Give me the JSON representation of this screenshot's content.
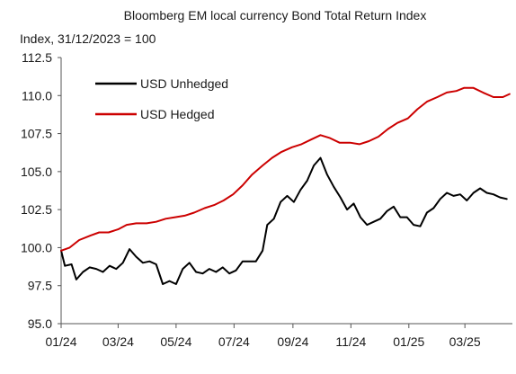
{
  "chart_data": {
    "type": "line",
    "title": "Bloomberg EM local currency Bond Total Return Index",
    "ylabel": "Index, 31/12/2023 = 100",
    "xlabel": "",
    "ylim": [
      95.0,
      112.5
    ],
    "yticks": [
      "95.0",
      "97.5",
      "100.0",
      "102.5",
      "105.0",
      "107.5",
      "110.0",
      "112.5"
    ],
    "xlim": [
      "2024-01-01",
      "2025-04-20"
    ],
    "xticks": [
      {
        "date": "2024-01-01",
        "label": "01/24"
      },
      {
        "date": "2024-03-01",
        "label": "03/24"
      },
      {
        "date": "2024-05-01",
        "label": "05/24"
      },
      {
        "date": "2024-07-01",
        "label": "07/24"
      },
      {
        "date": "2024-09-01",
        "label": "09/24"
      },
      {
        "date": "2024-11-01",
        "label": "11/24"
      },
      {
        "date": "2025-01-01",
        "label": "01/25"
      },
      {
        "date": "2025-03-01",
        "label": "03/25"
      }
    ],
    "grid": false,
    "legend_position": "top-left",
    "series": [
      {
        "name": "USD Unhedged",
        "color": "#000000",
        "points": [
          [
            "2024-01-01",
            99.8
          ],
          [
            "2024-01-05",
            98.8
          ],
          [
            "2024-01-12",
            98.9
          ],
          [
            "2024-01-17",
            97.9
          ],
          [
            "2024-01-24",
            98.4
          ],
          [
            "2024-01-31",
            98.7
          ],
          [
            "2024-02-07",
            98.6
          ],
          [
            "2024-02-14",
            98.4
          ],
          [
            "2024-02-21",
            98.8
          ],
          [
            "2024-02-28",
            98.6
          ],
          [
            "2024-03-06",
            99.0
          ],
          [
            "2024-03-13",
            99.9
          ],
          [
            "2024-03-20",
            99.4
          ],
          [
            "2024-03-27",
            99.0
          ],
          [
            "2024-04-03",
            99.1
          ],
          [
            "2024-04-10",
            98.9
          ],
          [
            "2024-04-17",
            97.6
          ],
          [
            "2024-04-24",
            97.8
          ],
          [
            "2024-05-01",
            97.6
          ],
          [
            "2024-05-08",
            98.6
          ],
          [
            "2024-05-15",
            99.0
          ],
          [
            "2024-05-22",
            98.4
          ],
          [
            "2024-05-29",
            98.3
          ],
          [
            "2024-06-05",
            98.6
          ],
          [
            "2024-06-12",
            98.4
          ],
          [
            "2024-06-19",
            98.7
          ],
          [
            "2024-06-26",
            98.3
          ],
          [
            "2024-07-03",
            98.5
          ],
          [
            "2024-07-10",
            99.1
          ],
          [
            "2024-07-17",
            99.1
          ],
          [
            "2024-07-24",
            99.1
          ],
          [
            "2024-07-31",
            99.8
          ],
          [
            "2024-08-05",
            101.5
          ],
          [
            "2024-08-12",
            101.9
          ],
          [
            "2024-08-19",
            103.0
          ],
          [
            "2024-08-26",
            103.4
          ],
          [
            "2024-09-02",
            103.0
          ],
          [
            "2024-09-09",
            103.8
          ],
          [
            "2024-09-16",
            104.4
          ],
          [
            "2024-09-23",
            105.4
          ],
          [
            "2024-09-30",
            105.9
          ],
          [
            "2024-10-07",
            104.8
          ],
          [
            "2024-10-14",
            104.0
          ],
          [
            "2024-10-21",
            103.3
          ],
          [
            "2024-10-28",
            102.5
          ],
          [
            "2024-11-04",
            102.9
          ],
          [
            "2024-11-11",
            102.0
          ],
          [
            "2024-11-18",
            101.5
          ],
          [
            "2024-11-25",
            101.7
          ],
          [
            "2024-12-02",
            101.9
          ],
          [
            "2024-12-09",
            102.4
          ],
          [
            "2024-12-16",
            102.7
          ],
          [
            "2024-12-23",
            102.0
          ],
          [
            "2024-12-30",
            102.0
          ],
          [
            "2025-01-06",
            101.5
          ],
          [
            "2025-01-13",
            101.4
          ],
          [
            "2025-01-20",
            102.3
          ],
          [
            "2025-01-27",
            102.6
          ],
          [
            "2025-02-03",
            103.2
          ],
          [
            "2025-02-10",
            103.6
          ],
          [
            "2025-02-17",
            103.4
          ],
          [
            "2025-02-24",
            103.5
          ],
          [
            "2025-03-03",
            103.1
          ],
          [
            "2025-03-10",
            103.6
          ],
          [
            "2025-03-17",
            103.9
          ],
          [
            "2025-03-24",
            103.6
          ],
          [
            "2025-03-31",
            103.5
          ],
          [
            "2025-04-07",
            103.3
          ],
          [
            "2025-04-14",
            103.2
          ]
        ]
      },
      {
        "name": "USD Hedged",
        "color": "#cc0000",
        "points": [
          [
            "2024-01-01",
            99.8
          ],
          [
            "2024-01-10",
            100.0
          ],
          [
            "2024-01-20",
            100.5
          ],
          [
            "2024-02-01",
            100.8
          ],
          [
            "2024-02-10",
            101.0
          ],
          [
            "2024-02-20",
            101.0
          ],
          [
            "2024-03-01",
            101.2
          ],
          [
            "2024-03-10",
            101.5
          ],
          [
            "2024-03-20",
            101.6
          ],
          [
            "2024-03-31",
            101.6
          ],
          [
            "2024-04-10",
            101.7
          ],
          [
            "2024-04-20",
            101.9
          ],
          [
            "2024-04-30",
            102.0
          ],
          [
            "2024-05-10",
            102.1
          ],
          [
            "2024-05-20",
            102.3
          ],
          [
            "2024-05-31",
            102.6
          ],
          [
            "2024-06-10",
            102.8
          ],
          [
            "2024-06-20",
            103.1
          ],
          [
            "2024-06-30",
            103.5
          ],
          [
            "2024-07-10",
            104.1
          ],
          [
            "2024-07-20",
            104.8
          ],
          [
            "2024-07-31",
            105.4
          ],
          [
            "2024-08-10",
            105.9
          ],
          [
            "2024-08-20",
            106.3
          ],
          [
            "2024-08-31",
            106.6
          ],
          [
            "2024-09-10",
            106.8
          ],
          [
            "2024-09-20",
            107.1
          ],
          [
            "2024-09-30",
            107.4
          ],
          [
            "2024-10-10",
            107.2
          ],
          [
            "2024-10-20",
            106.9
          ],
          [
            "2024-10-31",
            106.9
          ],
          [
            "2024-11-10",
            106.8
          ],
          [
            "2024-11-20",
            107.0
          ],
          [
            "2024-11-30",
            107.3
          ],
          [
            "2024-12-10",
            107.8
          ],
          [
            "2024-12-20",
            108.2
          ],
          [
            "2024-12-31",
            108.5
          ],
          [
            "2025-01-10",
            109.1
          ],
          [
            "2025-01-20",
            109.6
          ],
          [
            "2025-01-31",
            109.9
          ],
          [
            "2025-02-10",
            110.2
          ],
          [
            "2025-02-20",
            110.3
          ],
          [
            "2025-02-28",
            110.5
          ],
          [
            "2025-03-10",
            110.5
          ],
          [
            "2025-03-20",
            110.2
          ],
          [
            "2025-03-31",
            109.9
          ],
          [
            "2025-04-10",
            109.9
          ],
          [
            "2025-04-17",
            110.1
          ]
        ]
      }
    ]
  }
}
